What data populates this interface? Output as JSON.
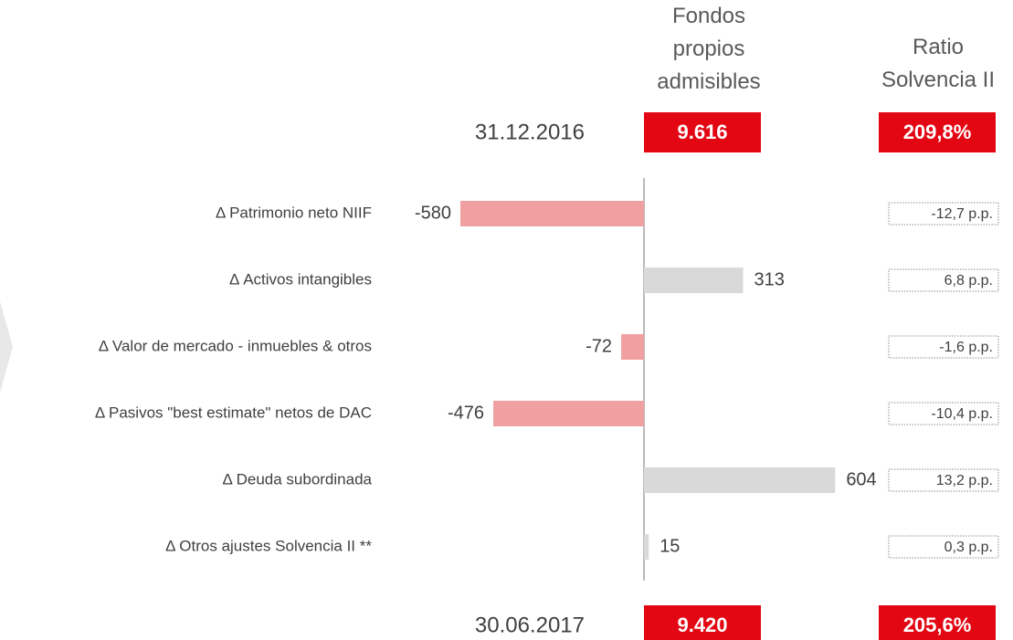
{
  "chart_data": {
    "type": "bar",
    "column_headers": [
      "Fondos propios admisibles",
      "Ratio Solvencia II"
    ],
    "totals": {
      "categories": [
        "31.12.2016",
        "30.06.2017"
      ],
      "values": [
        9616,
        9420
      ],
      "value_labels": [
        "9.616",
        "9.420"
      ],
      "ratio_values": [
        209.8,
        205.6
      ],
      "ratio_labels": [
        "209,8%",
        "205,6%"
      ],
      "color": "#e30613"
    },
    "categories": [
      "Δ Patrimonio neto NIIF",
      "Δ Activos intangibles",
      "Δ Valor de mercado - inmuebles & otros",
      "Δ Pasivos \"best estimate\" netos de DAC",
      "Δ Deuda subordinada",
      "Δ Otros ajustes Solvencia II **"
    ],
    "values": [
      -580,
      313,
      -72,
      -476,
      604,
      15
    ],
    "ratio_values": [
      -12.7,
      6.8,
      -1.6,
      -10.4,
      13.2,
      0.3
    ],
    "ratio_labels": [
      "-12,7 p.p.",
      "6,8 p.p.",
      "-1,6 p.p.",
      "-10,4 p.p.",
      "13,2 p.p.",
      "0,3 p.p."
    ],
    "negative_color": "#f0a0a0",
    "positive_color": "#d9d9d9"
  }
}
